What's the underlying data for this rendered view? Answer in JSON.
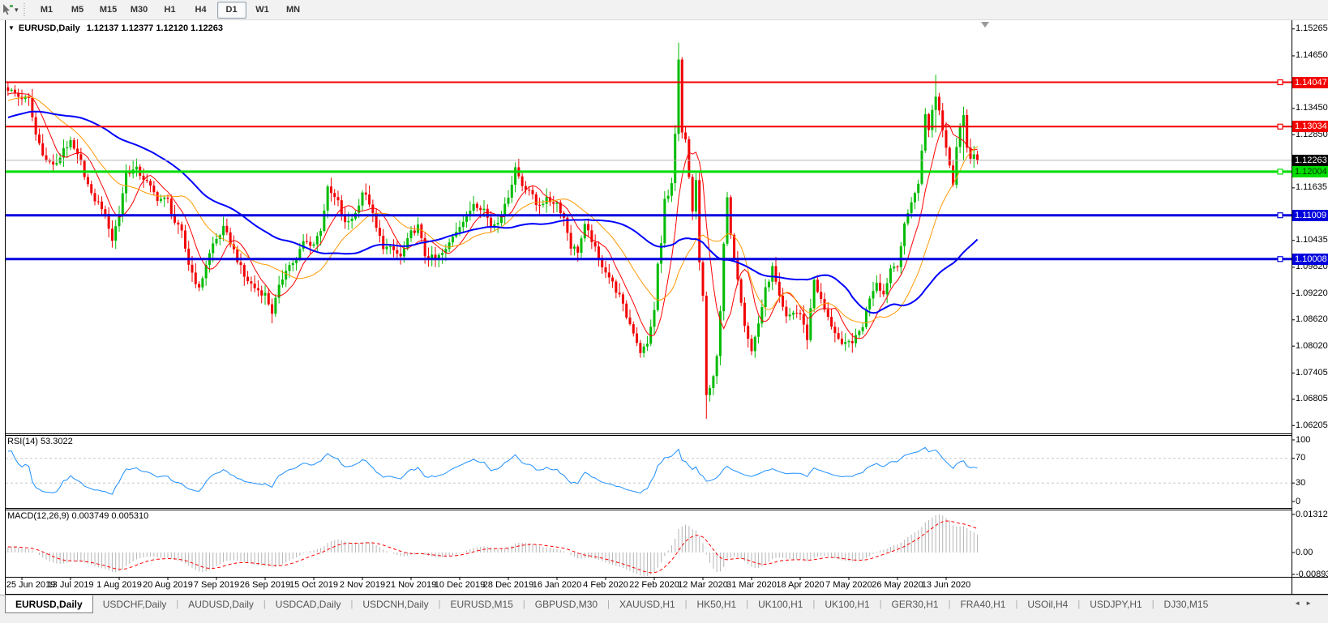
{
  "toolbar": {
    "tools_icon": "chart-tools-icon",
    "dropdown_icon": "caret-down-icon",
    "timeframes": [
      {
        "label": "M1",
        "active": false
      },
      {
        "label": "M5",
        "active": false
      },
      {
        "label": "M15",
        "active": false
      },
      {
        "label": "M30",
        "active": false
      },
      {
        "label": "H1",
        "active": false
      },
      {
        "label": "H4",
        "active": false
      },
      {
        "label": "D1",
        "active": true
      },
      {
        "label": "W1",
        "active": false
      },
      {
        "label": "MN",
        "active": false
      }
    ]
  },
  "chart": {
    "collapse_icon": "triangle-down-icon",
    "symbol_title": "EURUSD,Daily",
    "ohlc_text": "1.12137 1.12377 1.12120 1.12263"
  },
  "price_axis": {
    "ticks": [
      "1.15265",
      "1.14650",
      "1.13450",
      "1.12850",
      "1.11635",
      "1.10435",
      "1.09820",
      "1.09220",
      "1.08620",
      "1.08020",
      "1.07405",
      "1.06805",
      "1.06205"
    ],
    "badges": [
      {
        "label": "1.14047",
        "bg": "#f40000",
        "fg": "#ffffff"
      },
      {
        "label": "1.13034",
        "bg": "#f40000",
        "fg": "#ffffff"
      },
      {
        "label": "1.12263",
        "bg": "#000000",
        "fg": "#ffffff"
      },
      {
        "label": "1.12004",
        "bg": "#00dd00",
        "fg": "#003300"
      },
      {
        "label": "1.11009",
        "bg": "#0000dd",
        "fg": "#ffffff"
      },
      {
        "label": "1.10008",
        "bg": "#0000dd",
        "fg": "#ffffff"
      }
    ]
  },
  "rsi_panel": {
    "label": "RSI(14) 53.3022",
    "ticks": [
      "100",
      "70",
      "30",
      "0"
    ]
  },
  "macd_panel": {
    "label": "MACD(12,26,9) 0.003749 0.005310",
    "ticks": [
      "0.013121",
      "0.00",
      "-0.008933"
    ]
  },
  "date_axis": [
    "25 Jun 2019",
    "13 Jul 2019",
    "1 Aug 2019",
    "20 Aug 2019",
    "7 Sep 2019",
    "26 Sep 2019",
    "15 Oct 2019",
    "2 Nov 2019",
    "21 Nov 2019",
    "10 Dec 2019",
    "28 Dec 2019",
    "16 Jan 2020",
    "4 Feb 2020",
    "22 Feb 2020",
    "12 Mar 2020",
    "31 Mar 2020",
    "18 Apr 2020",
    "7 May 2020",
    "26 May 2020",
    "13 Jun 2020"
  ],
  "tab_bar": {
    "tabs": [
      {
        "label": "EURUSD,Daily",
        "active": true
      },
      {
        "label": "USDCHF,Daily",
        "active": false
      },
      {
        "label": "AUDUSD,Daily",
        "active": false
      },
      {
        "label": "USDCAD,Daily",
        "active": false
      },
      {
        "label": "USDCNH,Daily",
        "active": false
      },
      {
        "label": "EURUSD,M15",
        "active": false
      },
      {
        "label": "GBPUSD,M30",
        "active": false
      },
      {
        "label": "XAUUSD,H1",
        "active": false
      },
      {
        "label": "HK50,H1",
        "active": false
      },
      {
        "label": "UK100,H1",
        "active": false
      },
      {
        "label": "UK100,H1",
        "active": false
      },
      {
        "label": "GER30,H1",
        "active": false
      },
      {
        "label": "FRA40,H1",
        "active": false
      },
      {
        "label": "USOil,H4",
        "active": false
      },
      {
        "label": "USDJPY,H1",
        "active": false
      },
      {
        "label": "DJ30,M15",
        "active": false
      }
    ],
    "scroll_left": "◄",
    "scroll_right": "►"
  },
  "chart_data": {
    "type": "candlestick",
    "symbol": "EURUSD",
    "timeframe": "Daily",
    "last_ohlc": {
      "open": 1.12137,
      "high": 1.12377,
      "low": 1.1212,
      "close": 1.12263
    },
    "price_range_visible": [
      1.06025,
      1.15482
    ],
    "num_candles": 280,
    "up_color": "#00bb00",
    "down_color": "#f20000",
    "close_anchors": [
      [
        0,
        1.139
      ],
      [
        3,
        1.1372
      ],
      [
        6,
        1.1365
      ],
      [
        8,
        1.1285
      ],
      [
        11,
        1.1225
      ],
      [
        14,
        1.1215
      ],
      [
        16,
        1.1255
      ],
      [
        18,
        1.1265
      ],
      [
        21,
        1.122
      ],
      [
        24,
        1.1145
      ],
      [
        27,
        1.112
      ],
      [
        29,
        1.1075
      ],
      [
        30,
        1.1045
      ],
      [
        32,
        1.1105
      ],
      [
        34,
        1.12
      ],
      [
        37,
        1.1205
      ],
      [
        40,
        1.1175
      ],
      [
        43,
        1.114
      ],
      [
        46,
        1.1135
      ],
      [
        48,
        1.1085
      ],
      [
        50,
        1.106
      ],
      [
        52,
        1.099
      ],
      [
        55,
        1.093
      ],
      [
        57,
        1.099
      ],
      [
        59,
        1.1035
      ],
      [
        62,
        1.107
      ],
      [
        64,
        1.104
      ],
      [
        66,
        1.1
      ],
      [
        68,
        1.096
      ],
      [
        71,
        1.0935
      ],
      [
        74,
        1.092
      ],
      [
        76,
        1.088
      ],
      [
        78,
        1.0935
      ],
      [
        80,
        1.098
      ],
      [
        83,
        1.1
      ],
      [
        85,
        1.104
      ],
      [
        88,
        1.1035
      ],
      [
        90,
        1.107
      ],
      [
        92,
        1.116
      ],
      [
        95,
        1.113
      ],
      [
        97,
        1.108
      ],
      [
        100,
        1.1105
      ],
      [
        102,
        1.1155
      ],
      [
        104,
        1.113
      ],
      [
        106,
        1.107
      ],
      [
        108,
        1.103
      ],
      [
        111,
        1.102
      ],
      [
        113,
        1.1005
      ],
      [
        116,
        1.106
      ],
      [
        118,
        1.1075
      ],
      [
        120,
        1.101
      ],
      [
        123,
        1.1
      ],
      [
        126,
        1.102
      ],
      [
        128,
        1.1055
      ],
      [
        130,
        1.108
      ],
      [
        132,
        1.1095
      ],
      [
        134,
        1.113
      ],
      [
        137,
        1.1115
      ],
      [
        139,
        1.1075
      ],
      [
        141,
        1.109
      ],
      [
        143,
        1.112
      ],
      [
        145,
        1.1175
      ],
      [
        146,
        1.121
      ],
      [
        148,
        1.117
      ],
      [
        150,
        1.116
      ],
      [
        152,
        1.1125
      ],
      [
        155,
        1.1135
      ],
      [
        158,
        1.113
      ],
      [
        160,
        1.1095
      ],
      [
        162,
        1.103
      ],
      [
        164,
        1.102
      ],
      [
        166,
        1.1075
      ],
      [
        168,
        1.1045
      ],
      [
        170,
        1.1
      ],
      [
        172,
        1.0975
      ],
      [
        174,
        1.0945
      ],
      [
        176,
        1.0915
      ],
      [
        178,
        1.087
      ],
      [
        180,
        1.0835
      ],
      [
        182,
        1.079
      ],
      [
        184,
        1.0805
      ],
      [
        185,
        1.085
      ],
      [
        186,
        1.088
      ],
      [
        187,
        1.099
      ],
      [
        188,
        1.1035
      ],
      [
        189,
        1.1135
      ],
      [
        191,
        1.117
      ],
      [
        192,
        1.1285
      ],
      [
        193,
        1.145
      ],
      [
        194,
        1.1285
      ],
      [
        195,
        1.127
      ],
      [
        196,
        1.1185
      ],
      [
        197,
        1.1105
      ],
      [
        198,
        1.118
      ],
      [
        199,
        1.0995
      ],
      [
        200,
        1.0915
      ],
      [
        201,
        1.069
      ],
      [
        202,
        1.07
      ],
      [
        203,
        1.073
      ],
      [
        204,
        1.0785
      ],
      [
        205,
        1.0885
      ],
      [
        206,
        1.103
      ],
      [
        207,
        1.114
      ],
      [
        208,
        1.105
      ],
      [
        210,
        1.096
      ],
      [
        212,
        1.0855
      ],
      [
        214,
        1.079
      ],
      [
        216,
        1.0855
      ],
      [
        218,
        1.093
      ],
      [
        220,
        1.098
      ],
      [
        222,
        1.091
      ],
      [
        224,
        1.0865
      ],
      [
        226,
        1.088
      ],
      [
        228,
        1.0875
      ],
      [
        230,
        1.082
      ],
      [
        232,
        1.0955
      ],
      [
        234,
        1.0905
      ],
      [
        236,
        1.0865
      ],
      [
        238,
        1.0835
      ],
      [
        240,
        1.08
      ],
      [
        242,
        1.081
      ],
      [
        244,
        1.082
      ],
      [
        246,
        1.085
      ],
      [
        248,
        1.0915
      ],
      [
        250,
        1.095
      ],
      [
        252,
        1.092
      ],
      [
        254,
        1.098
      ],
      [
        256,
        1.099
      ],
      [
        258,
        1.1075
      ],
      [
        260,
        1.1135
      ],
      [
        262,
        1.117
      ],
      [
        263,
        1.125
      ],
      [
        264,
        1.1337
      ],
      [
        265,
        1.1292
      ],
      [
        266,
        1.134
      ],
      [
        267,
        1.1375
      ],
      [
        268,
        1.134
      ],
      [
        269,
        1.1298
      ],
      [
        270,
        1.1256
      ],
      [
        271,
        1.122
      ],
      [
        272,
        1.1177
      ],
      [
        273,
        1.126
      ],
      [
        274,
        1.1308
      ],
      [
        275,
        1.133
      ],
      [
        276,
        1.1251
      ],
      [
        277,
        1.123
      ],
      [
        278,
        1.124
      ],
      [
        279,
        1.12263
      ]
    ],
    "wick_overrides": [
      [
        193,
        1.1495,
        1.127
      ],
      [
        201,
        1.0745,
        1.0636
      ],
      [
        267,
        1.1422,
        1.129
      ],
      [
        275,
        1.1349,
        1.1225
      ],
      [
        30,
        1.1085,
        1.1027
      ]
    ],
    "warmup": {
      "bars": 60,
      "start": 1.1235,
      "end": 1.1385
    },
    "levels": [
      {
        "name": "resistance-1",
        "price": 1.14047,
        "color": "#f40000",
        "width": 2
      },
      {
        "name": "resistance-2",
        "price": 1.13034,
        "color": "#f40000",
        "width": 2
      },
      {
        "name": "current-price",
        "price": 1.12263,
        "color": "#b8b8b8",
        "width": 1
      },
      {
        "name": "support-1",
        "price": 1.12004,
        "color": "#00dd00",
        "width": 3
      },
      {
        "name": "support-2",
        "price": 1.11009,
        "color": "#0000dd",
        "width": 3
      },
      {
        "name": "support-3",
        "price": 1.10008,
        "color": "#0000dd",
        "width": 3
      }
    ],
    "moving_averages": [
      {
        "name": "ma-fast",
        "period": 8,
        "color": "#ff0000",
        "width": 1
      },
      {
        "name": "ma-medium",
        "period": 20,
        "color": "#ff9900",
        "width": 1
      },
      {
        "name": "ma-slow",
        "period": 50,
        "color": "#0000ff",
        "width": 2
      }
    ],
    "rsi": {
      "period": 14,
      "current": 53.3022,
      "color": "#1e90ff",
      "levels": [
        70,
        30
      ],
      "range": [
        0,
        100
      ]
    },
    "macd": {
      "fast": 12,
      "slow": 26,
      "signal": 9,
      "current": [
        0.003749,
        0.00531
      ],
      "histogram_color": "#b4b4b4",
      "signal_color": "#ff0000",
      "range": [
        -0.008933,
        0.013121
      ]
    }
  }
}
